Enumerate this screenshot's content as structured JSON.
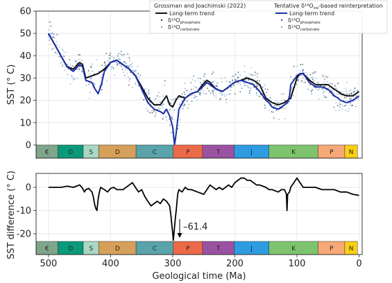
{
  "chart_data": [
    {
      "type": "scatter",
      "ylabel": "SST (° C)",
      "xlim": [
        520,
        -5
      ],
      "ylim": [
        0,
        60
      ],
      "yticks": [
        0,
        10,
        20,
        30,
        40,
        50,
        60
      ],
      "grid": true,
      "legend": {
        "placement": "top-right",
        "groups": [
          {
            "title": "Grossman and Joachimski (2022)",
            "line_label": "Long-term trend",
            "line_color": "#111111",
            "dot_labels": [
              "phosphate",
              "carbonate"
            ],
            "dot_colors": [
              "#3a3a3a",
              "#9a9a9a"
            ]
          },
          {
            "title": "Tentative δ¹⁸Oₛₑ-based reinterpretation",
            "line_label": "Long-term trend",
            "line_color": "#1a2ea8",
            "dot_labels": [
              "phosphate",
              "carbonate"
            ],
            "dot_colors": [
              "#1f62c8",
              "#7ab2de"
            ]
          }
        ],
        "delta_label": "δ¹⁸O"
      },
      "series": [
        {
          "name": "Long-term trend (Grossman and Joachimski 2022)",
          "color": "#111111",
          "x": [
            500,
            490,
            480,
            470,
            460,
            450,
            445,
            440,
            430,
            420,
            410,
            400,
            390,
            380,
            370,
            360,
            350,
            340,
            330,
            320,
            315,
            310,
            305,
            300,
            295,
            290,
            280,
            270,
            260,
            252,
            245,
            240,
            230,
            220,
            210,
            201,
            190,
            180,
            170,
            160,
            150,
            145,
            140,
            130,
            120,
            110,
            100,
            95,
            90,
            80,
            70,
            66,
            60,
            50,
            40,
            34,
            30,
            20,
            10,
            0
          ],
          "y": [
            50,
            45,
            40,
            35,
            34,
            37,
            36,
            30,
            31,
            32,
            34,
            37,
            38,
            36,
            34,
            31,
            26,
            21,
            18,
            18,
            20,
            22,
            18,
            17,
            20,
            22,
            21,
            23,
            24,
            27,
            29,
            28,
            25,
            24,
            26,
            28,
            29,
            30,
            29,
            27,
            21,
            20,
            19,
            18,
            19,
            21,
            30,
            32,
            32,
            29,
            27,
            27,
            27,
            27,
            25,
            24,
            23,
            22,
            22,
            24
          ]
        },
        {
          "name": "Long-term trend (tentative reinterpretation)",
          "color": "#1a2ea8",
          "x": [
            500,
            490,
            480,
            470,
            460,
            450,
            445,
            440,
            430,
            425,
            420,
            415,
            410,
            400,
            390,
            380,
            370,
            360,
            350,
            340,
            330,
            320,
            315,
            310,
            305,
            300,
            297,
            295,
            290,
            280,
            270,
            260,
            252,
            245,
            240,
            230,
            220,
            210,
            201,
            190,
            180,
            170,
            160,
            150,
            145,
            140,
            130,
            120,
            115,
            112,
            110,
            100,
            95,
            90,
            80,
            70,
            66,
            60,
            50,
            40,
            34,
            30,
            20,
            10,
            0
          ],
          "y": [
            50,
            45,
            40,
            35,
            33,
            36,
            35,
            29,
            28,
            25,
            23,
            27,
            33,
            37,
            38,
            36,
            34,
            31,
            25,
            19,
            16,
            15,
            14,
            16,
            13,
            8,
            0,
            4,
            16,
            21,
            23,
            24,
            26,
            28,
            27,
            25,
            24,
            26,
            28,
            29,
            28,
            27,
            24,
            20,
            19,
            17,
            16,
            18,
            19,
            22,
            27,
            31,
            32,
            32,
            28,
            26,
            26,
            26,
            25,
            22,
            21,
            20,
            19,
            20,
            22
          ]
        }
      ]
    },
    {
      "type": "line",
      "ylabel": "SST difference (° C)",
      "xlabel": "Geological time (Ma)",
      "xlim": [
        520,
        -5
      ],
      "ylim": [
        -23,
        6
      ],
      "xticks": [
        500,
        400,
        300,
        200,
        100,
        0
      ],
      "yticks": [
        0,
        -10,
        -20
      ],
      "grid": true,
      "annotation": {
        "text": "–61.4",
        "x": 297,
        "arrow": "down"
      },
      "series": [
        {
          "name": "SST difference",
          "color": "#000000",
          "x": [
            500,
            490,
            480,
            470,
            460,
            450,
            446,
            444,
            442,
            440,
            435,
            430,
            428,
            426,
            424,
            422,
            420,
            418,
            416,
            410,
            405,
            400,
            395,
            390,
            380,
            370,
            365,
            360,
            355,
            350,
            345,
            340,
            335,
            330,
            325,
            320,
            315,
            310,
            305,
            303,
            302,
            300,
            299,
            298,
            296,
            294,
            292,
            290,
            285,
            280,
            275,
            270,
            260,
            250,
            245,
            240,
            235,
            230,
            225,
            220,
            210,
            205,
            200,
            195,
            190,
            185,
            180,
            175,
            170,
            165,
            160,
            150,
            145,
            140,
            130,
            125,
            120,
            117,
            116,
            115,
            112,
            110,
            105,
            100,
            90,
            80,
            70,
            60,
            50,
            40,
            30,
            20,
            10,
            0
          ],
          "y": [
            0,
            0,
            0,
            0.5,
            0,
            1,
            0,
            -1,
            -2,
            -1,
            -0.5,
            -2,
            -4,
            -7,
            -9,
            -10,
            -5,
            -2,
            0,
            -1,
            -2,
            -0.5,
            0,
            -1,
            -1,
            1,
            2,
            0,
            -2,
            -1,
            -4,
            -6,
            -8,
            -7,
            -6,
            -7,
            -5,
            -6,
            -8,
            -12,
            -15,
            -20,
            -23,
            -20,
            -14,
            -9,
            -3,
            -1,
            -2,
            0,
            -1,
            -1,
            -2,
            -3,
            -1,
            1,
            0,
            -1,
            0,
            -1,
            1,
            0,
            2,
            3,
            4,
            4,
            3,
            3,
            2,
            1,
            1,
            0,
            -1,
            -1,
            -2,
            -1,
            -1,
            -3,
            -10,
            -3,
            -2,
            0,
            2,
            4,
            0,
            0,
            0,
            -1,
            -1,
            -1,
            -2,
            -2,
            -3,
            -3.5
          ]
        }
      ]
    }
  ],
  "periods": [
    {
      "label": "€",
      "start": 540,
      "end": 485,
      "color": "#7fa58a"
    },
    {
      "label": "O",
      "start": 485,
      "end": 444,
      "color": "#0a9a7a"
    },
    {
      "label": "S",
      "start": 444,
      "end": 419,
      "color": "#a8d8c4"
    },
    {
      "label": "D",
      "start": 419,
      "end": 359,
      "color": "#d6a05a"
    },
    {
      "label": "C",
      "start": 359,
      "end": 299,
      "color": "#5aa3aa"
    },
    {
      "label": "P",
      "start": 299,
      "end": 252,
      "color": "#ec6a47"
    },
    {
      "label": "T",
      "start": 252,
      "end": 201,
      "color": "#9a52a2"
    },
    {
      "label": "J",
      "start": 201,
      "end": 145,
      "color": "#2e9ce0"
    },
    {
      "label": "K",
      "start": 145,
      "end": 66,
      "color": "#7ec46e"
    },
    {
      "label": "P",
      "start": 66,
      "end": 23,
      "color": "#f7a877"
    },
    {
      "label": "N",
      "start": 23,
      "end": 2.6,
      "color": "#fbcf14"
    }
  ],
  "legend_text": {
    "title_left": "Grossman and Joachimski (2022)",
    "title_right": "Tentative δ¹⁸O",
    "title_right_sub": "sw",
    "title_right_suffix": "-based reinterpretation",
    "trend": "Long-term trend",
    "delta": "δ¹⁸O",
    "phosphate": "phosphate",
    "carbonate": "carbonate"
  }
}
